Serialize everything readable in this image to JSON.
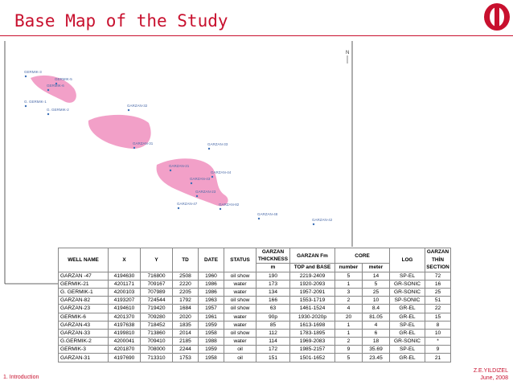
{
  "title": "Base Map of the Study",
  "map": {
    "north": "N",
    "wells": [
      "GERMIK-3",
      "GERMIK-5",
      "GERMIK-6",
      "G. GERMIK-1",
      "G. GERMIK-2",
      "GARZAN-32",
      "GARZAN-31",
      "GARZAN-33",
      "GARZAN-21",
      "GARZAN-44",
      "GARZAN-43",
      "GARZAN-23",
      "GARZAN-47",
      "GARZAN-82",
      "GARZAN-48",
      "GARZAN-42"
    ]
  },
  "table": {
    "header": {
      "well_name": "WELL NAME",
      "x": "X",
      "y": "Y",
      "td": "TD",
      "date": "DATE",
      "status": "STATUS",
      "thickness": [
        "GARZAN",
        "THICKNESS",
        "m"
      ],
      "fm": [
        "GARZAN Fm",
        "TOP and BASE"
      ],
      "core": "CORE",
      "core_sub": [
        "number",
        "meter"
      ],
      "log": "LOG",
      "section": [
        "GARZAN",
        "THİN",
        "SECTION"
      ]
    },
    "rows": [
      [
        "GARZAN -47",
        "4194630",
        "716800",
        "2508",
        "1960",
        "oil show",
        "190",
        "2219-2409",
        "5",
        "14",
        "SP-EL",
        "72"
      ],
      [
        "GERMIK-21",
        "4201171",
        "709167",
        "2220",
        "1986",
        "water",
        "173",
        "1920-2093",
        "1",
        "5",
        "GR-SONIC",
        "16"
      ],
      [
        "G. GERMIK-1",
        "4200103",
        "707989",
        "2205",
        "1986",
        "water",
        "134",
        "1957-2091",
        "3",
        "25",
        "GR-SONIC",
        "25"
      ],
      [
        "GARZAN-82",
        "4193207",
        "724544",
        "1792",
        "1963",
        "oil show",
        "166",
        "1553-1719",
        "2",
        "10",
        "SP-SONIC",
        "51"
      ],
      [
        "GARZAN-23",
        "4194610",
        "719420",
        "1684",
        "1957",
        "oil show",
        "63",
        "1461-1524",
        "4",
        "8.4",
        "GR-EL",
        "22"
      ],
      [
        "GERMIK-6",
        "4201370",
        "709280",
        "2020",
        "1961",
        "water",
        "90p",
        "1930-2020p",
        "20",
        "81.05",
        "GR-EL",
        "15"
      ],
      [
        "GARZAN-43",
        "4197638",
        "718452",
        "1835",
        "1959",
        "water",
        "85",
        "1613-1698",
        "1",
        "4",
        "SP-EL",
        "8"
      ],
      [
        "GARZAN-33",
        "4199810",
        "713860",
        "2014",
        "1958",
        "oil show",
        "112",
        "1783-1895",
        "1",
        "6",
        "GR-EL",
        "10"
      ],
      [
        "G.GERMIK-2",
        "4200041",
        "709410",
        "2185",
        "1988",
        "water",
        "114",
        "1969-2083",
        "2",
        "18",
        "GR-SONIC",
        "*"
      ],
      [
        "GERMIK-3",
        "4201870",
        "708000",
        "2244",
        "1959",
        "oil",
        "172",
        "1985-2157",
        "9",
        "35.69",
        "SP-EL",
        "9"
      ],
      [
        "GARZAN-31",
        "4197690",
        "713310",
        "1753",
        "1958",
        "oil",
        "151",
        "1501-1652",
        "5",
        "23.45",
        "GR-EL",
        "21"
      ]
    ]
  },
  "footer": {
    "section": "1. Introduction",
    "author": "Z.E.YILDIZEL",
    "date": "June, 2008"
  }
}
